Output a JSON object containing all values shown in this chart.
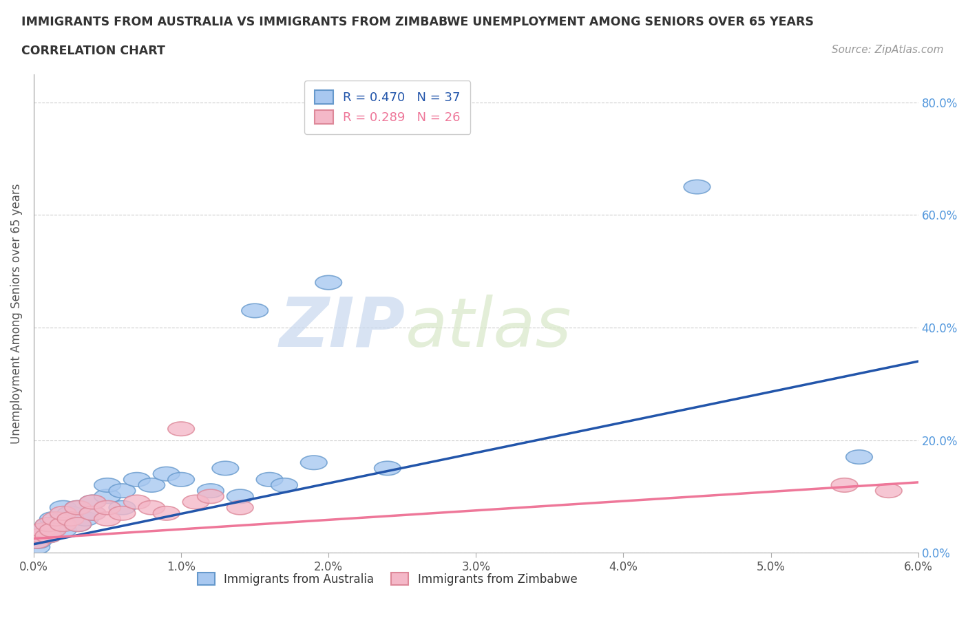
{
  "title_line1": "IMMIGRANTS FROM AUSTRALIA VS IMMIGRANTS FROM ZIMBABWE UNEMPLOYMENT AMONG SENIORS OVER 65 YEARS",
  "title_line2": "CORRELATION CHART",
  "source": "Source: ZipAtlas.com",
  "ylabel": "Unemployment Among Seniors over 65 years",
  "xlim": [
    0.0,
    0.06
  ],
  "ylim": [
    0.0,
    0.85
  ],
  "xticks": [
    0.0,
    0.01,
    0.02,
    0.03,
    0.04,
    0.05,
    0.06
  ],
  "xtick_labels": [
    "0.0%",
    "1.0%",
    "2.0%",
    "3.0%",
    "4.0%",
    "5.0%",
    "6.0%"
  ],
  "yticks": [
    0.0,
    0.2,
    0.4,
    0.6,
    0.8
  ],
  "ytick_labels": [
    "0.0%",
    "20.0%",
    "40.0%",
    "60.0%",
    "80.0%"
  ],
  "australia_color": "#a8c8f0",
  "australia_edge": "#6699cc",
  "zimbabwe_color": "#f4b8c8",
  "zimbabwe_edge": "#dd8899",
  "trend_australia_color": "#2255aa",
  "trend_zimbabwe_color": "#ee7799",
  "legend_R_australia": "R = 0.470",
  "legend_N_australia": "N = 37",
  "legend_R_zimbabwe": "R = 0.289",
  "legend_N_zimbabwe": "N = 26",
  "watermark_zip": "ZIP",
  "watermark_atlas": "atlas",
  "background_color": "#ffffff",
  "grid_color": "#cccccc",
  "australia_x": [
    0.0002,
    0.0003,
    0.0005,
    0.0007,
    0.001,
    0.001,
    0.0012,
    0.0013,
    0.0015,
    0.002,
    0.002,
    0.002,
    0.0025,
    0.003,
    0.003,
    0.0035,
    0.004,
    0.004,
    0.005,
    0.005,
    0.006,
    0.006,
    0.007,
    0.008,
    0.009,
    0.01,
    0.012,
    0.013,
    0.014,
    0.015,
    0.016,
    0.017,
    0.019,
    0.02,
    0.024,
    0.045,
    0.056
  ],
  "australia_y": [
    0.01,
    0.02,
    0.03,
    0.04,
    0.03,
    0.05,
    0.04,
    0.06,
    0.05,
    0.04,
    0.06,
    0.08,
    0.07,
    0.05,
    0.08,
    0.06,
    0.07,
    0.09,
    0.1,
    0.12,
    0.08,
    0.11,
    0.13,
    0.12,
    0.14,
    0.13,
    0.11,
    0.15,
    0.1,
    0.43,
    0.13,
    0.12,
    0.16,
    0.48,
    0.15,
    0.65,
    0.17
  ],
  "zimbabwe_x": [
    0.0002,
    0.0004,
    0.0006,
    0.001,
    0.001,
    0.0013,
    0.0015,
    0.002,
    0.002,
    0.0025,
    0.003,
    0.003,
    0.004,
    0.004,
    0.005,
    0.005,
    0.006,
    0.007,
    0.008,
    0.009,
    0.01,
    0.011,
    0.012,
    0.014,
    0.055,
    0.058
  ],
  "zimbabwe_y": [
    0.02,
    0.03,
    0.04,
    0.03,
    0.05,
    0.04,
    0.06,
    0.05,
    0.07,
    0.06,
    0.05,
    0.08,
    0.07,
    0.09,
    0.06,
    0.08,
    0.07,
    0.09,
    0.08,
    0.07,
    0.22,
    0.09,
    0.1,
    0.08,
    0.12,
    0.11
  ],
  "aus_trend_x0": 0.0,
  "aus_trend_y0": 0.015,
  "aus_trend_x1": 0.06,
  "aus_trend_y1": 0.34,
  "zim_trend_x0": 0.0,
  "zim_trend_y0": 0.025,
  "zim_trend_x1": 0.06,
  "zim_trend_y1": 0.125
}
